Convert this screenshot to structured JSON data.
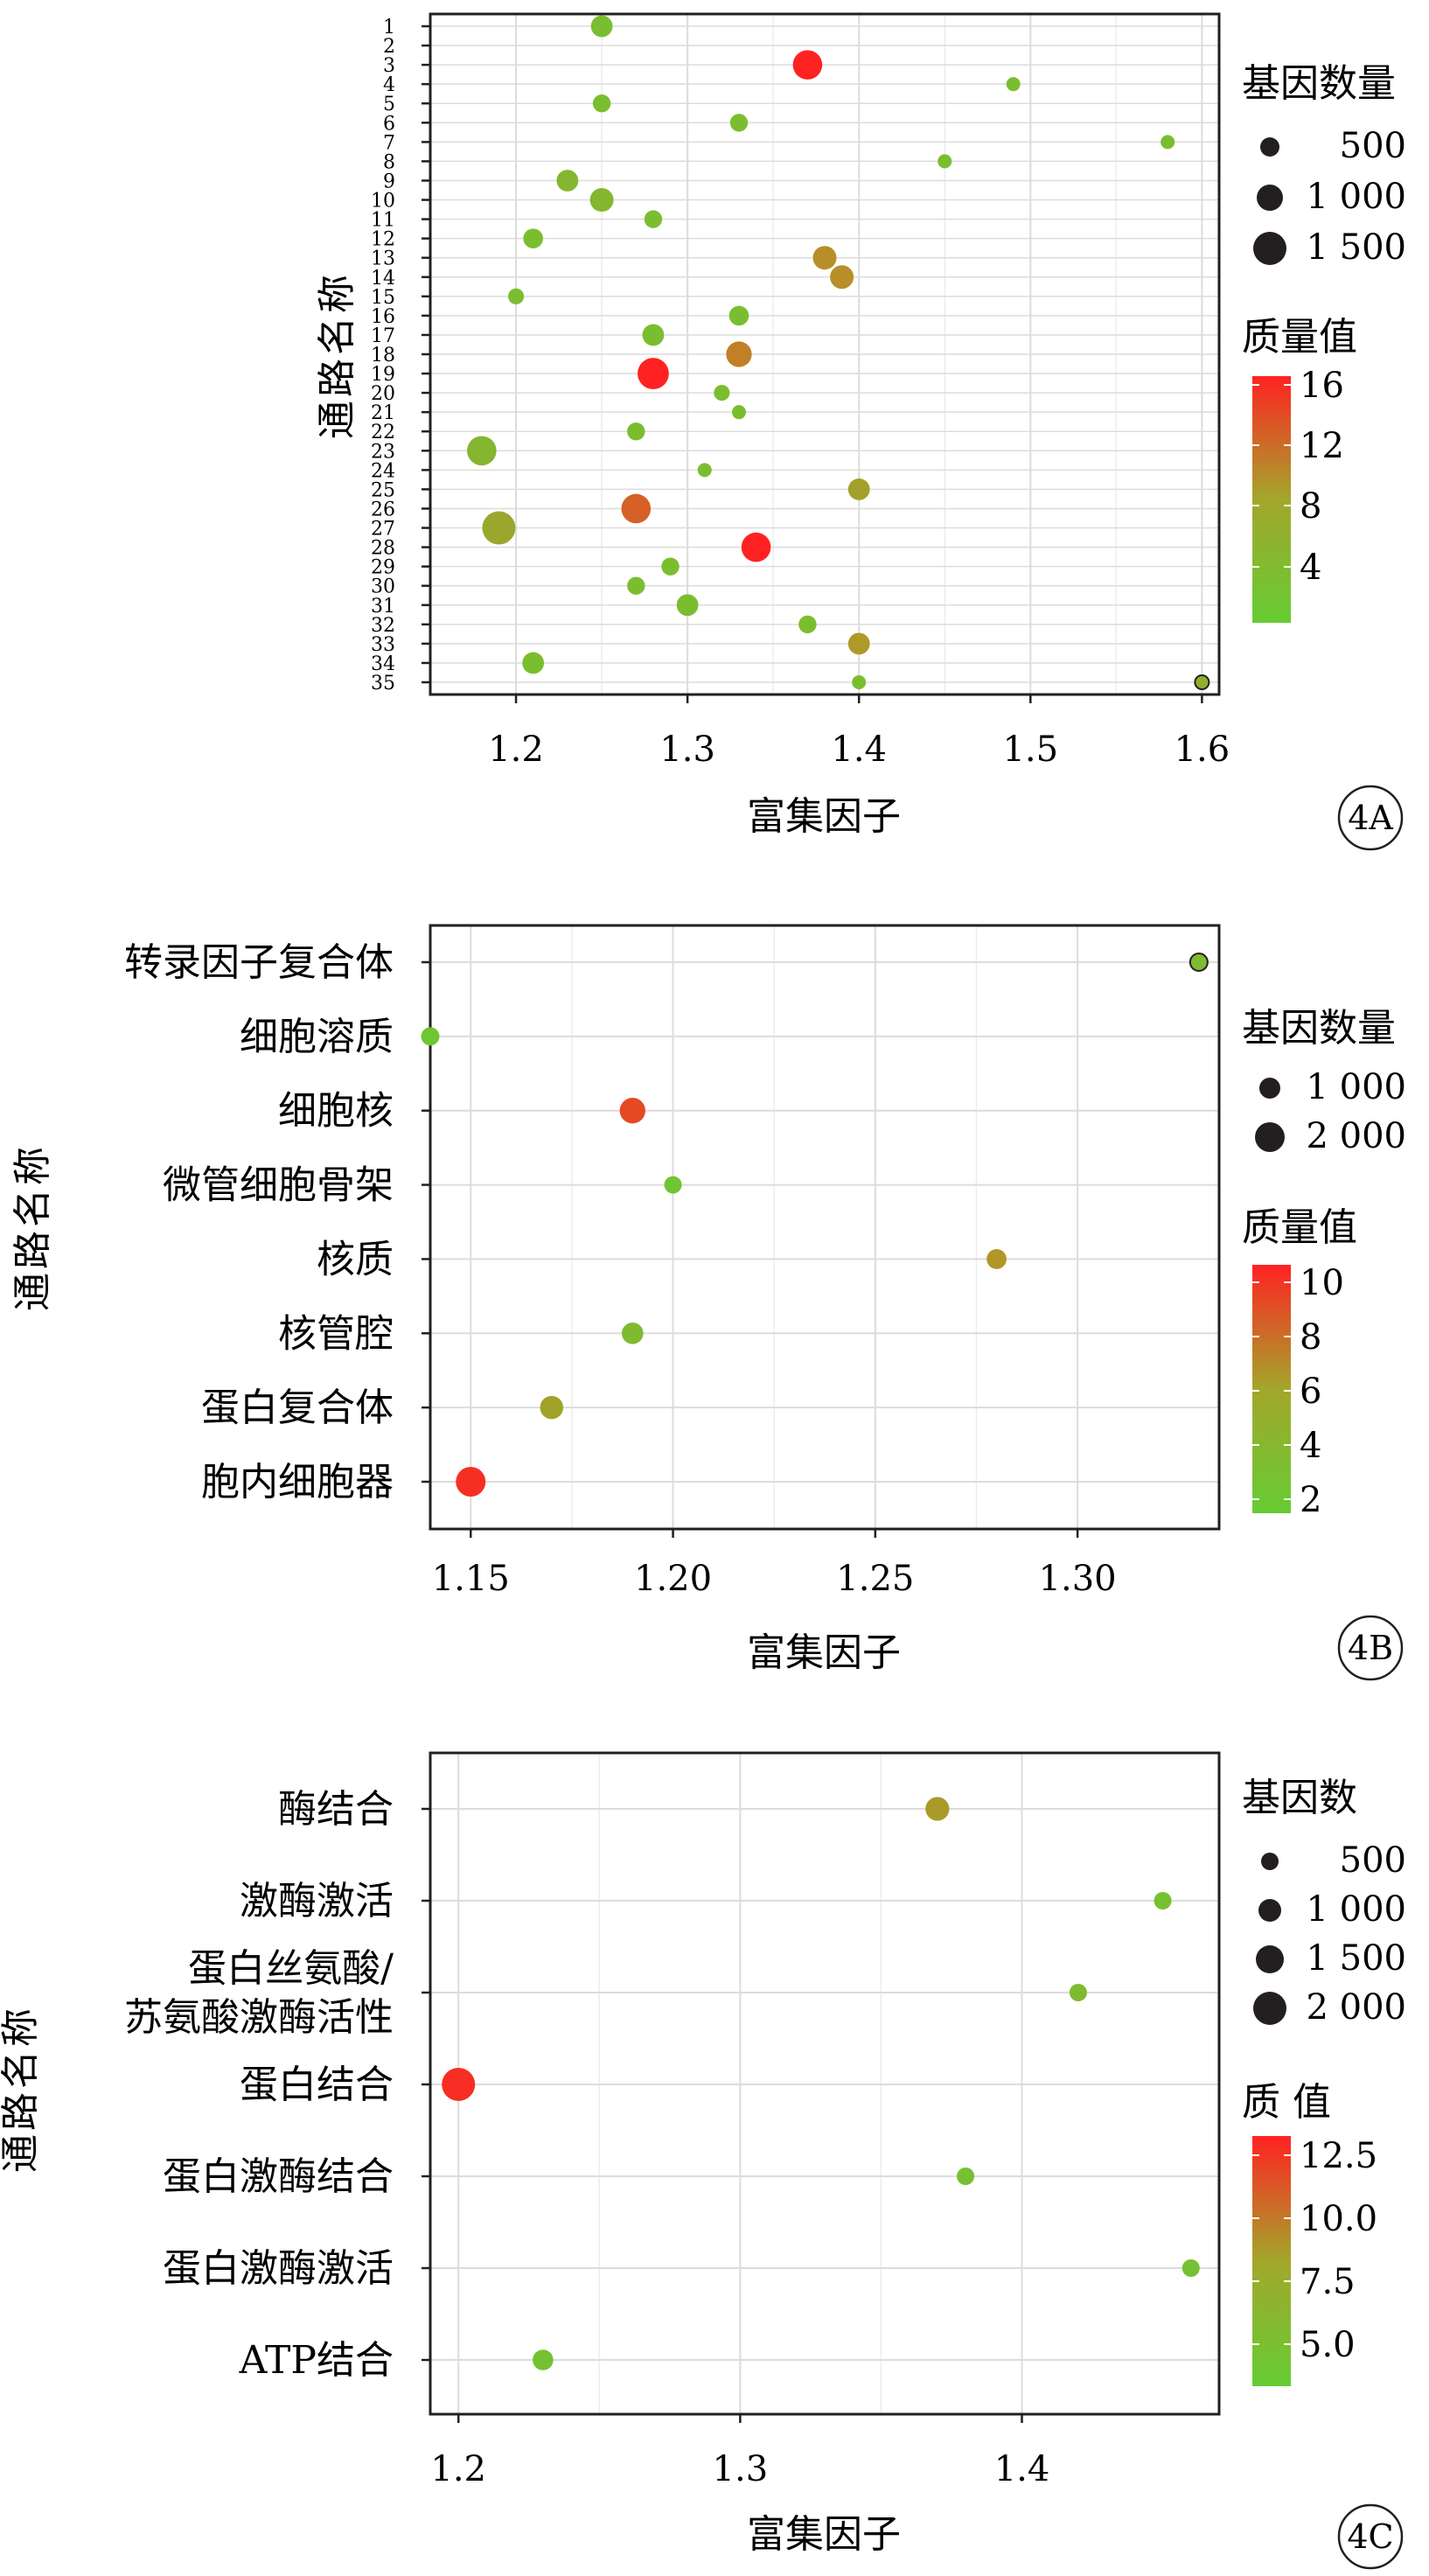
{
  "charts": [
    {
      "id": "4A",
      "panel_label": "4A",
      "xlabel": "富集因子",
      "ylabel": "通路名称",
      "size_legend_title": "基因数量",
      "size_legend_values": [
        "500",
        "1 000",
        "1 500"
      ],
      "color_legend_title": "质量值",
      "color_legend_ticks": [
        "16",
        "12",
        "8",
        "4"
      ],
      "x_ticks": [
        "1.2",
        "1.3",
        "1.4",
        "1.5",
        "1.6"
      ]
    },
    {
      "id": "4B",
      "panel_label": "4B",
      "xlabel": "富集因子",
      "ylabel": "通路名称",
      "size_legend_title": "基因数量",
      "size_legend_values": [
        "1 000",
        "2 000"
      ],
      "color_legend_title": "质量值",
      "color_legend_ticks": [
        "10",
        "8",
        "6",
        "4",
        "2"
      ],
      "x_ticks": [
        "1.15",
        "1.20",
        "1.25",
        "1.30"
      ]
    },
    {
      "id": "4C",
      "panel_label": "4C",
      "xlabel": "富集因子",
      "ylabel": "通路名称",
      "size_legend_title": "基因数",
      "size_legend_values": [
        "500",
        "1 000",
        "1 500",
        "2 000"
      ],
      "color_legend_title": "质 值",
      "color_legend_ticks": [
        "12.5",
        "10.0",
        "7.5",
        "5.0"
      ],
      "x_ticks": [
        "1.2",
        "1.3",
        "1.4"
      ]
    }
  ],
  "chart_data": [
    {
      "type": "scatter",
      "title": "",
      "xlabel": "富集因子",
      "ylabel": "通路名称",
      "xlim": [
        1.15,
        1.61
      ],
      "x_ticks": [
        1.2,
        1.3,
        1.4,
        1.5,
        1.6
      ],
      "categories": [
        "1",
        "2",
        "3",
        "4",
        "5",
        "6",
        "7",
        "8",
        "9",
        "10",
        "11",
        "12",
        "13",
        "14",
        "15",
        "16",
        "17",
        "18",
        "19",
        "20",
        "21",
        "22",
        "23",
        "24",
        "25",
        "26",
        "27",
        "28",
        "29",
        "30",
        "31",
        "32",
        "33",
        "34",
        "35"
      ],
      "points": [
        {
          "category": "1",
          "x": 1.25,
          "quality": 3,
          "genes": 900
        },
        {
          "category": "3",
          "x": 1.37,
          "quality": 16,
          "genes": 1300
        },
        {
          "category": "4",
          "x": 1.49,
          "quality": 3,
          "genes": 500
        },
        {
          "category": "5",
          "x": 1.25,
          "quality": 3,
          "genes": 700
        },
        {
          "category": "6",
          "x": 1.33,
          "quality": 3,
          "genes": 700
        },
        {
          "category": "7",
          "x": 1.58,
          "quality": 3,
          "genes": 500
        },
        {
          "category": "8",
          "x": 1.45,
          "quality": 3,
          "genes": 500
        },
        {
          "category": "9",
          "x": 1.23,
          "quality": 4,
          "genes": 900
        },
        {
          "category": "10",
          "x": 1.25,
          "quality": 4,
          "genes": 1000
        },
        {
          "category": "11",
          "x": 1.28,
          "quality": 3,
          "genes": 700
        },
        {
          "category": "12",
          "x": 1.21,
          "quality": 3,
          "genes": 800
        },
        {
          "category": "13",
          "x": 1.38,
          "quality": 9,
          "genes": 1000
        },
        {
          "category": "14",
          "x": 1.39,
          "quality": 9,
          "genes": 1000
        },
        {
          "category": "15",
          "x": 1.2,
          "quality": 3,
          "genes": 600
        },
        {
          "category": "16",
          "x": 1.33,
          "quality": 3,
          "genes": 800
        },
        {
          "category": "17",
          "x": 1.28,
          "quality": 3,
          "genes": 900
        },
        {
          "category": "18",
          "x": 1.33,
          "quality": 10,
          "genes": 1100
        },
        {
          "category": "19",
          "x": 1.28,
          "quality": 16,
          "genes": 1400
        },
        {
          "category": "20",
          "x": 1.32,
          "quality": 3,
          "genes": 600
        },
        {
          "category": "21",
          "x": 1.33,
          "quality": 3,
          "genes": 500
        },
        {
          "category": "22",
          "x": 1.27,
          "quality": 3,
          "genes": 700
        },
        {
          "category": "23",
          "x": 1.18,
          "quality": 4,
          "genes": 1300
        },
        {
          "category": "24",
          "x": 1.31,
          "quality": 3,
          "genes": 500
        },
        {
          "category": "25",
          "x": 1.4,
          "quality": 7,
          "genes": 900
        },
        {
          "category": "26",
          "x": 1.27,
          "quality": 12,
          "genes": 1300
        },
        {
          "category": "27",
          "x": 1.19,
          "quality": 6,
          "genes": 1500
        },
        {
          "category": "28",
          "x": 1.34,
          "quality": 16,
          "genes": 1300
        },
        {
          "category": "29",
          "x": 1.29,
          "quality": 3,
          "genes": 700
        },
        {
          "category": "30",
          "x": 1.27,
          "quality": 3,
          "genes": 700
        },
        {
          "category": "31",
          "x": 1.3,
          "quality": 3,
          "genes": 900
        },
        {
          "category": "32",
          "x": 1.37,
          "quality": 3,
          "genes": 700
        },
        {
          "category": "33",
          "x": 1.4,
          "quality": 8,
          "genes": 900
        },
        {
          "category": "34",
          "x": 1.21,
          "quality": 3,
          "genes": 900
        },
        {
          "category": "35",
          "x": 1.6,
          "quality": 5,
          "genes": 500
        },
        {
          "category": "35",
          "x": 1.4,
          "quality": 3,
          "genes": 500
        }
      ],
      "size_legend": {
        "title": "基因数量",
        "values": [
          500,
          1000,
          1500
        ]
      },
      "color_legend": {
        "title": "质量值",
        "min": 1,
        "max": 16,
        "ticks": [
          16,
          12,
          8,
          4
        ],
        "low_color": "#66cc33",
        "high_color": "#ff2222"
      },
      "grid": true,
      "legend_placement": "right"
    },
    {
      "type": "scatter",
      "title": "",
      "xlabel": "富集因子",
      "ylabel": "通路名称",
      "xlim": [
        1.14,
        1.335
      ],
      "x_ticks": [
        1.15,
        1.2,
        1.25,
        1.3
      ],
      "categories": [
        "转录因子复合体",
        "细胞溶质",
        "细胞核",
        "微管细胞骨架",
        "核质",
        "核管腔",
        "蛋白复合体",
        "胞内细胞器"
      ],
      "points": [
        {
          "category": "转录因子复合体",
          "x": 1.33,
          "quality": 3,
          "genes": 500
        },
        {
          "category": "细胞溶质",
          "x": 1.14,
          "quality": 2,
          "genes": 600
        },
        {
          "category": "细胞核",
          "x": 1.19,
          "quality": 9,
          "genes": 1500
        },
        {
          "category": "微管细胞骨架",
          "x": 1.2,
          "quality": 2,
          "genes": 500
        },
        {
          "category": "核质",
          "x": 1.28,
          "quality": 6,
          "genes": 800
        },
        {
          "category": "核管腔",
          "x": 1.19,
          "quality": 3,
          "genes": 1000
        },
        {
          "category": "蛋白复合体",
          "x": 1.17,
          "quality": 5,
          "genes": 1200
        },
        {
          "category": "胞内细胞器",
          "x": 1.15,
          "quality": 10,
          "genes": 2000
        }
      ],
      "size_legend": {
        "title": "基因数量",
        "values": [
          1000,
          2000
        ]
      },
      "color_legend": {
        "title": "质量值",
        "min": 1.5,
        "max": 10.5,
        "ticks": [
          10,
          8,
          6,
          4,
          2
        ],
        "low_color": "#66cc33",
        "high_color": "#ff2222"
      },
      "grid": true,
      "legend_placement": "right"
    },
    {
      "type": "scatter",
      "title": "",
      "xlabel": "富集因子",
      "ylabel": "通路名称",
      "xlim": [
        1.19,
        1.47
      ],
      "x_ticks": [
        1.2,
        1.3,
        1.4
      ],
      "categories": [
        "酶结合",
        "激酶激活",
        "蛋白丝氨酸/苏氨酸激酶活性",
        "蛋白结合",
        "蛋白激酶结合",
        "蛋白激酶激活",
        "ATP结合"
      ],
      "category_display": [
        "酶结合",
        "激酶激活",
        "蛋白丝氨酸/\n苏氨酸激酶活性",
        "蛋白结合",
        "蛋白激酶结合",
        "蛋白激酶激活",
        "ATP结合"
      ],
      "points": [
        {
          "category": "酶结合",
          "x": 1.37,
          "quality": 8,
          "genes": 1100
        },
        {
          "category": "激酶激活",
          "x": 1.45,
          "quality": 4.5,
          "genes": 500
        },
        {
          "category": "蛋白丝氨酸/苏氨酸激酶活性",
          "x": 1.42,
          "quality": 5,
          "genes": 500
        },
        {
          "category": "蛋白结合",
          "x": 1.2,
          "quality": 13,
          "genes": 2000
        },
        {
          "category": "蛋白激酶结合",
          "x": 1.38,
          "quality": 4.5,
          "genes": 500
        },
        {
          "category": "蛋白激酶激活",
          "x": 1.46,
          "quality": 4.5,
          "genes": 500
        },
        {
          "category": "ATP结合",
          "x": 1.23,
          "quality": 4.5,
          "genes": 800
        }
      ],
      "size_legend": {
        "title": "基因数",
        "values": [
          500,
          1000,
          1500,
          2000
        ]
      },
      "color_legend": {
        "title": "质 值",
        "min": 3.5,
        "max": 13.5,
        "ticks": [
          12.5,
          10.0,
          7.5,
          5.0
        ],
        "low_color": "#66cc33",
        "high_color": "#ff2222"
      },
      "grid": true,
      "legend_placement": "right"
    }
  ]
}
